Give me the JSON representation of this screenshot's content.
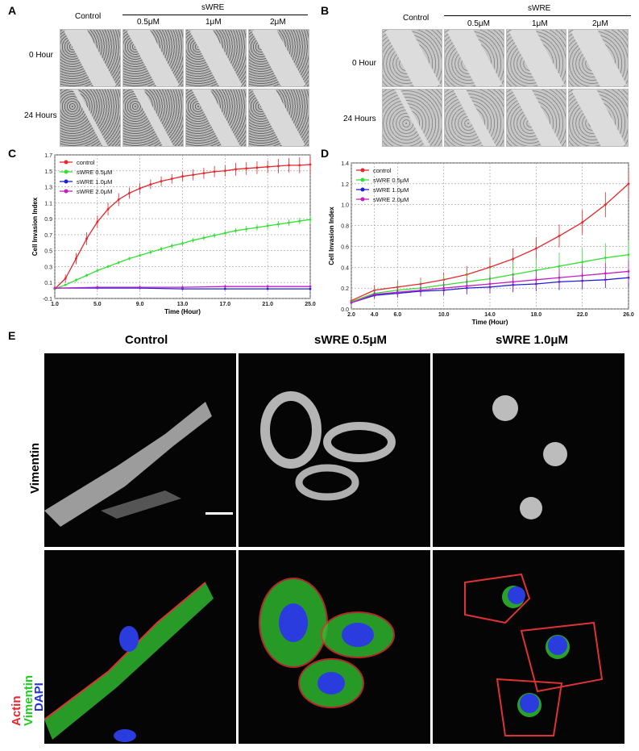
{
  "panels": {
    "A": {
      "label": "A",
      "columns": [
        "Control",
        "0.5μM",
        "1μM",
        "2μM"
      ],
      "group_label": "sWRE",
      "rows": [
        "0 Hour",
        "24 Hours"
      ]
    },
    "B": {
      "label": "B",
      "columns": [
        "Control",
        "0.5μM",
        "1μM",
        "2μM"
      ],
      "group_label": "sWRE",
      "rows": [
        "0 Hour",
        "24 Hours"
      ]
    },
    "E": {
      "label": "E",
      "columns": [
        "Control",
        "sWRE 0.5μM",
        "sWRE 1.0μM"
      ],
      "row1_label": "Vimentin",
      "row2_labels": [
        "Actin",
        "Vimentin",
        "DAPI"
      ]
    }
  },
  "colors": {
    "control": "#e8262b",
    "sWRE 0.5μM": "#33e033",
    "sWRE 1.0μM": "#1f1fd6",
    "sWRE 2.0μM": "#c21fc2"
  },
  "chart_data": [
    {
      "panel": "C",
      "type": "line",
      "xlabel": "Time (Hour)",
      "ylabel": "Cell Invasion Index",
      "xlim": [
        1.0,
        25.0
      ],
      "ylim": [
        -0.1,
        1.7
      ],
      "xticks": [
        "1.0",
        "5.0",
        "9.0",
        "13.0",
        "17.0",
        "21.0",
        "25.0"
      ],
      "yticks": [
        "-0.1",
        "0.1",
        "0.3",
        "0.5",
        "0.7",
        "0.9",
        "1.1",
        "1.3",
        "1.5",
        "1.7"
      ],
      "grid": true,
      "legend": "top-left",
      "series": [
        {
          "name": "control",
          "x": [
            1,
            2,
            3,
            4,
            5,
            6,
            7,
            8,
            9,
            10,
            11,
            12,
            13,
            14,
            15,
            16,
            17,
            18,
            19,
            20,
            21,
            22,
            23,
            24,
            25
          ],
          "y": [
            0.02,
            0.15,
            0.4,
            0.65,
            0.86,
            1.02,
            1.14,
            1.22,
            1.28,
            1.33,
            1.37,
            1.4,
            1.43,
            1.45,
            1.47,
            1.49,
            1.5,
            1.52,
            1.53,
            1.54,
            1.55,
            1.56,
            1.57,
            1.57,
            1.58
          ],
          "err": [
            0.02,
            0.05,
            0.07,
            0.08,
            0.08,
            0.08,
            0.08,
            0.07,
            0.07,
            0.06,
            0.06,
            0.06,
            0.06,
            0.07,
            0.07,
            0.07,
            0.07,
            0.08,
            0.08,
            0.08,
            0.08,
            0.09,
            0.09,
            0.1,
            0.1
          ]
        },
        {
          "name": "sWRE 0.5μM",
          "x": [
            1,
            2,
            3,
            4,
            5,
            6,
            7,
            8,
            9,
            10,
            11,
            12,
            13,
            14,
            15,
            16,
            17,
            18,
            19,
            20,
            21,
            22,
            23,
            24,
            25
          ],
          "y": [
            0.02,
            0.07,
            0.13,
            0.19,
            0.25,
            0.3,
            0.35,
            0.4,
            0.44,
            0.48,
            0.52,
            0.56,
            0.59,
            0.63,
            0.66,
            0.69,
            0.72,
            0.75,
            0.77,
            0.79,
            0.81,
            0.83,
            0.85,
            0.87,
            0.89
          ],
          "err": [
            0.01,
            0.01,
            0.02,
            0.02,
            0.02,
            0.02,
            0.02,
            0.02,
            0.02,
            0.03,
            0.03,
            0.03,
            0.03,
            0.03,
            0.03,
            0.03,
            0.03,
            0.03,
            0.04,
            0.04,
            0.04,
            0.04,
            0.04,
            0.04,
            0.05
          ]
        },
        {
          "name": "sWRE 1.0μM",
          "x": [
            1,
            5,
            9,
            13,
            17,
            21,
            25
          ],
          "y": [
            0.03,
            0.03,
            0.03,
            0.02,
            0.02,
            0.02,
            0.02
          ],
          "err": [
            0.01,
            0.01,
            0.01,
            0.01,
            0.01,
            0.01,
            0.01
          ]
        },
        {
          "name": "sWRE 2.0μM",
          "x": [
            1,
            5,
            9,
            13,
            17,
            21,
            25
          ],
          "y": [
            0.03,
            0.04,
            0.04,
            0.04,
            0.05,
            0.05,
            0.05
          ],
          "err": [
            0.01,
            0.02,
            0.02,
            0.02,
            0.02,
            0.02,
            0.02
          ]
        }
      ]
    },
    {
      "panel": "D",
      "type": "line",
      "xlabel": "Time (Hour)",
      "ylabel": "Cell Invasion Index",
      "xlim": [
        2.0,
        26.0
      ],
      "ylim": [
        0.0,
        1.4
      ],
      "xticks": [
        "2.0",
        "4.0",
        "6.0",
        "10.0",
        "14.0",
        "18.0",
        "22.0",
        "26.0"
      ],
      "yticks": [
        "0.0",
        "0.2",
        "0.4",
        "0.6",
        "0.8",
        "1.0",
        "1.2",
        "1.4"
      ],
      "grid": true,
      "legend": "top-left",
      "series": [
        {
          "name": "control",
          "x": [
            2,
            4,
            6,
            8,
            10,
            12,
            14,
            16,
            18,
            20,
            22,
            24,
            26
          ],
          "y": [
            0.08,
            0.18,
            0.21,
            0.24,
            0.28,
            0.33,
            0.4,
            0.48,
            0.58,
            0.7,
            0.83,
            1.0,
            1.2
          ],
          "err": [
            0.02,
            0.05,
            0.06,
            0.06,
            0.07,
            0.08,
            0.09,
            0.1,
            0.11,
            0.11,
            0.12,
            0.12,
            0.13
          ]
        },
        {
          "name": "sWRE 0.5μM",
          "x": [
            2,
            4,
            6,
            8,
            10,
            12,
            14,
            16,
            18,
            20,
            22,
            24,
            26
          ],
          "y": [
            0.07,
            0.15,
            0.18,
            0.2,
            0.23,
            0.26,
            0.29,
            0.33,
            0.37,
            0.41,
            0.45,
            0.49,
            0.52
          ],
          "err": [
            0.02,
            0.05,
            0.07,
            0.08,
            0.09,
            0.1,
            0.11,
            0.12,
            0.12,
            0.13,
            0.13,
            0.14,
            0.14
          ]
        },
        {
          "name": "sWRE 1.0μM",
          "x": [
            2,
            4,
            6,
            8,
            10,
            12,
            14,
            16,
            18,
            20,
            22,
            24,
            26
          ],
          "y": [
            0.06,
            0.13,
            0.15,
            0.17,
            0.18,
            0.2,
            0.21,
            0.23,
            0.24,
            0.26,
            0.27,
            0.28,
            0.3
          ],
          "err": [
            0.02,
            0.03,
            0.04,
            0.05,
            0.05,
            0.06,
            0.06,
            0.07,
            0.07,
            0.08,
            0.08,
            0.08,
            0.09
          ]
        },
        {
          "name": "sWRE 2.0μM",
          "x": [
            2,
            4,
            6,
            8,
            10,
            12,
            14,
            16,
            18,
            20,
            22,
            24,
            26
          ],
          "y": [
            0.06,
            0.14,
            0.16,
            0.18,
            0.2,
            0.22,
            0.24,
            0.26,
            0.28,
            0.3,
            0.32,
            0.34,
            0.36
          ],
          "err": [
            0.02,
            0.04,
            0.05,
            0.06,
            0.06,
            0.07,
            0.08,
            0.08,
            0.09,
            0.09,
            0.1,
            0.1,
            0.11
          ]
        }
      ]
    }
  ]
}
